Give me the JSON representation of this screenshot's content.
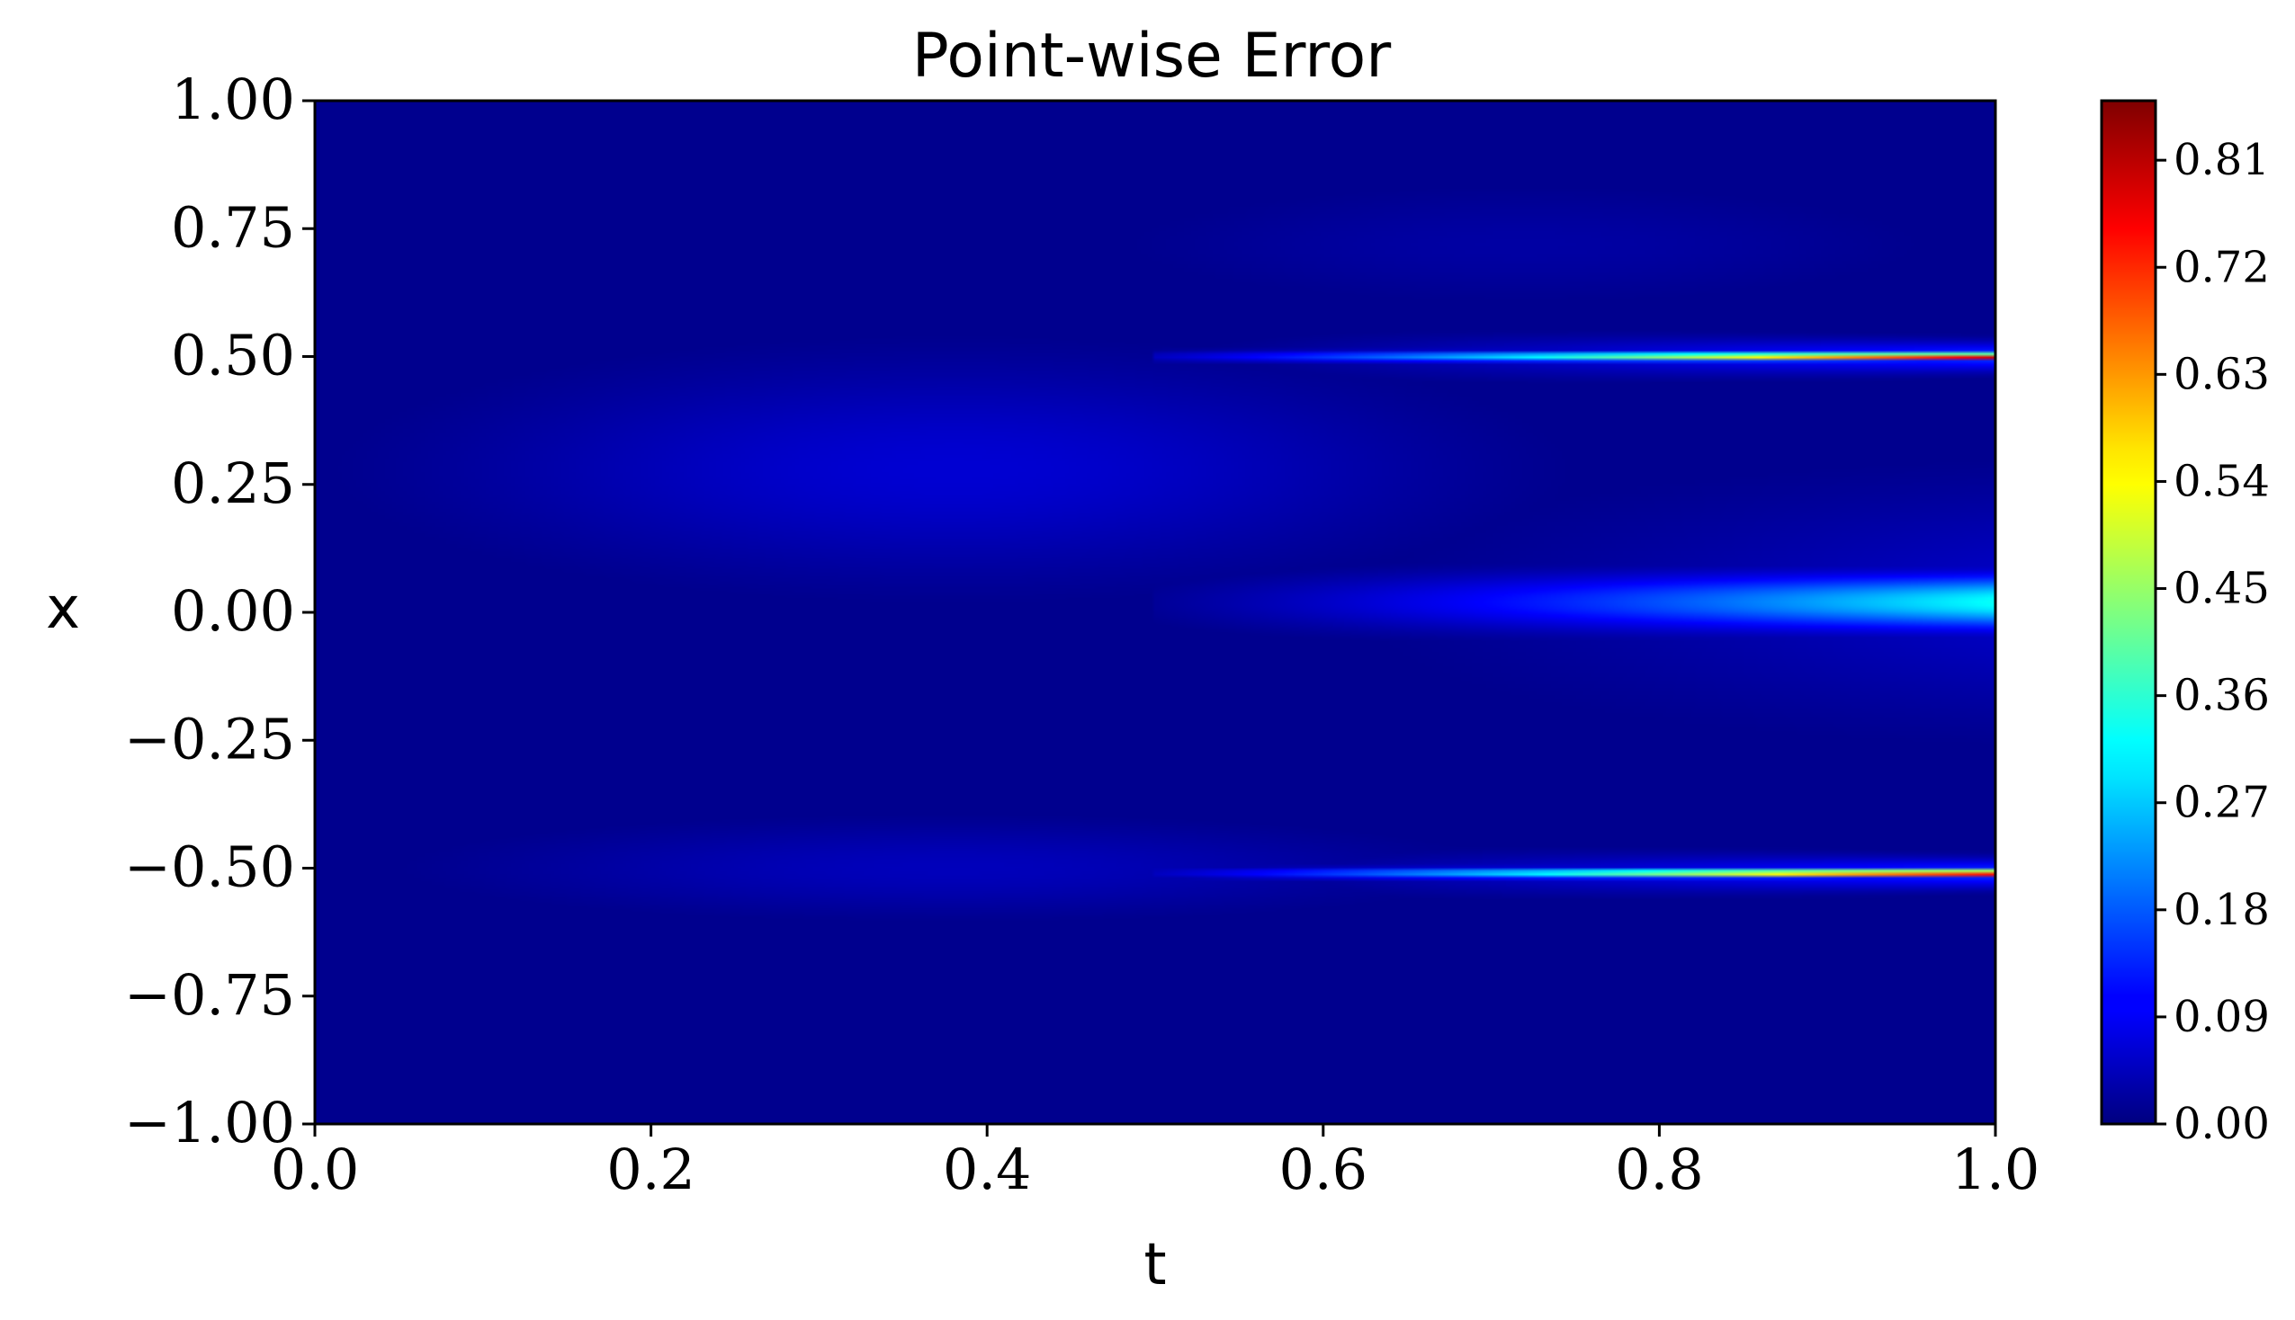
{
  "chart_data": {
    "type": "heatmap",
    "title": "Point-wise Error",
    "xlabel": "t",
    "ylabel": "x",
    "xlim": [
      0.0,
      1.0
    ],
    "ylim": [
      -1.0,
      1.0
    ],
    "x_ticks": [
      0.0,
      0.2,
      0.4,
      0.6,
      0.8,
      1.0
    ],
    "x_tick_labels": [
      "0.0",
      "0.2",
      "0.4",
      "0.6",
      "0.8",
      "1.0"
    ],
    "y_ticks": [
      1.0,
      0.75,
      0.5,
      0.25,
      0.0,
      -0.25,
      -0.5,
      -0.75,
      -1.0
    ],
    "y_tick_labels": [
      "1.00",
      "0.75",
      "0.50",
      "0.25",
      "0.00",
      "−0.25",
      "−0.50",
      "−0.75",
      "−1.00"
    ],
    "colormap": "jet",
    "colorbar": {
      "range": [
        0.0,
        0.86
      ],
      "ticks": [
        0.0,
        0.09,
        0.18,
        0.27,
        0.36,
        0.45,
        0.54,
        0.63,
        0.72,
        0.81
      ],
      "tick_labels": [
        "0.00",
        "0.09",
        "0.18",
        "0.27",
        "0.36",
        "0.45",
        "0.54",
        "0.63",
        "0.72",
        "0.81"
      ]
    },
    "features": [
      {
        "kind": "band",
        "x_center": 0.5,
        "t_start": 0.5,
        "t_end": 1.0,
        "peak_error": 0.86,
        "width_start": 0.012,
        "width_end": 0.006
      },
      {
        "kind": "band",
        "x_center": 0.02,
        "t_start": 0.5,
        "t_end": 1.0,
        "peak_error": 0.33,
        "width_start": 0.06,
        "width_end": 0.05
      },
      {
        "kind": "band",
        "x_center": -0.51,
        "t_start": 0.5,
        "t_end": 1.0,
        "peak_error": 0.86,
        "width_start": 0.012,
        "width_end": 0.006
      },
      {
        "kind": "blob",
        "t_center": 0.38,
        "x_center": 0.28,
        "t_radius": 0.28,
        "x_radius": 0.2,
        "peak_error": 0.07
      },
      {
        "kind": "blob",
        "t_center": 0.38,
        "x_center": -0.5,
        "t_radius": 0.28,
        "x_radius": 0.09,
        "peak_error": 0.05
      },
      {
        "kind": "blob",
        "t_center": 0.72,
        "x_center": 0.72,
        "t_radius": 0.25,
        "x_radius": 0.12,
        "peak_error": 0.03
      }
    ]
  }
}
